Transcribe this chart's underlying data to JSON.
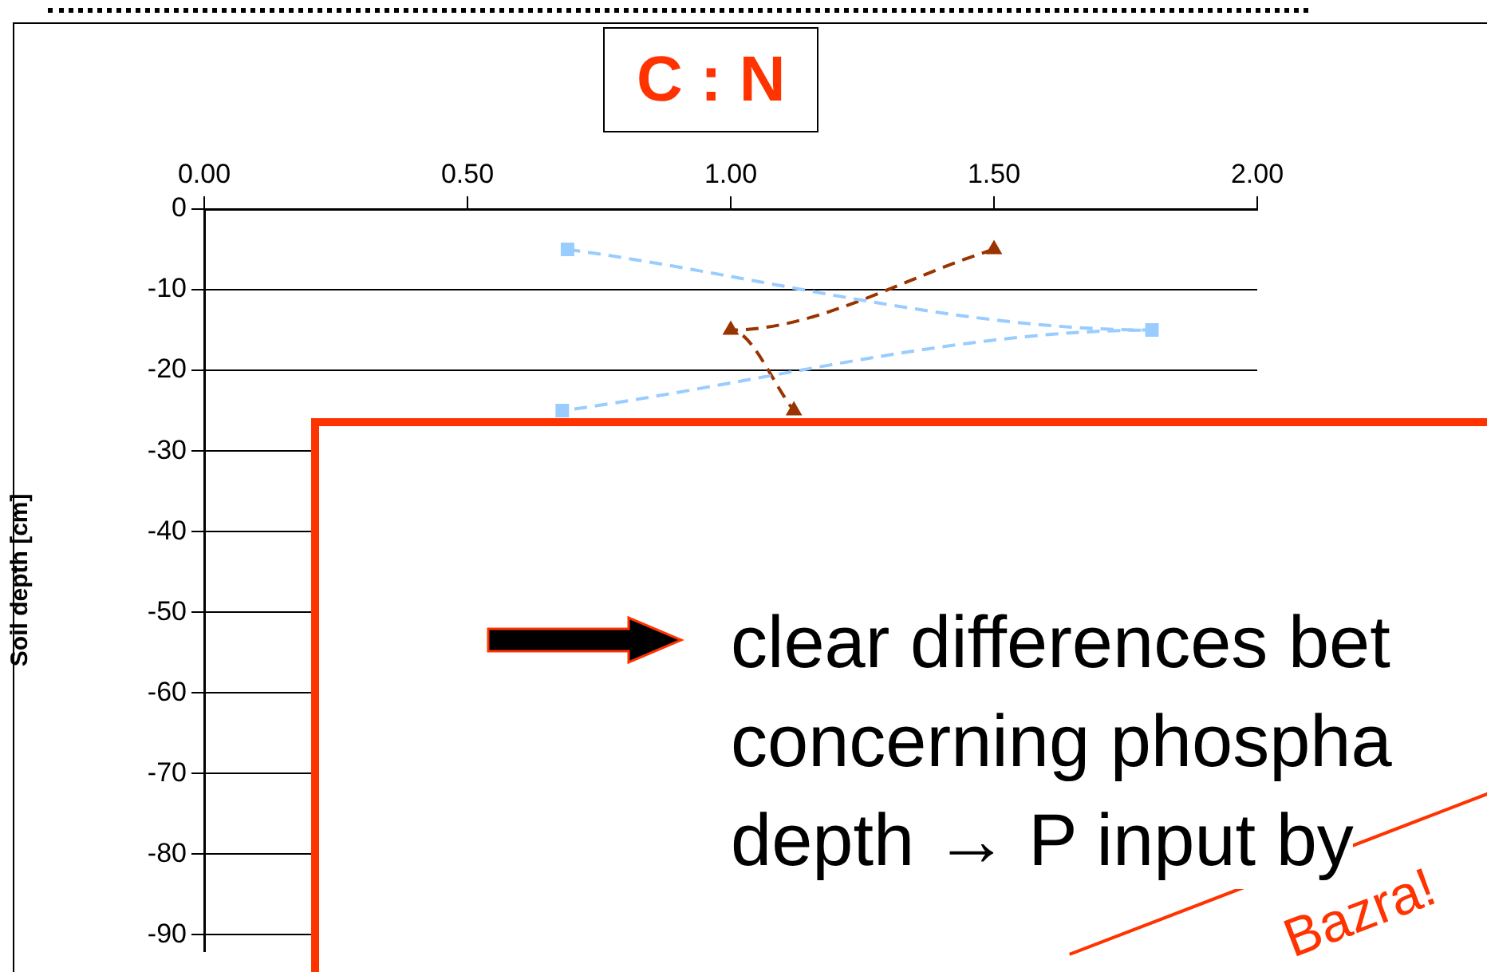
{
  "chart_data": {
    "type": "line",
    "title": "C : N",
    "ylabel": "Soil depth [cm]",
    "xlim": [
      0,
      2
    ],
    "xticks": [
      {
        "value": 0,
        "label": "0.00"
      },
      {
        "value": 0.5,
        "label": "0.50"
      },
      {
        "value": 1,
        "label": "1.00"
      },
      {
        "value": 1.5,
        "label": "1.50"
      },
      {
        "value": 2,
        "label": "2.00"
      }
    ],
    "ylim": [
      -92,
      0
    ],
    "yticks": [
      0,
      -10,
      -20,
      -30,
      -40,
      -50,
      -60,
      -70,
      -80,
      -90
    ],
    "grid": "y",
    "legend": false,
    "line_style": "dashed",
    "series": [
      {
        "color": "#99ccff",
        "marker": "square",
        "x": [
          0.69,
          1.8,
          0.68
        ],
        "values": [
          -5,
          -15,
          -25
        ]
      },
      {
        "color": "#993300",
        "marker": "triangle",
        "x": [
          1.5,
          1.0,
          1.12
        ],
        "values": [
          -5,
          -15,
          -25
        ]
      }
    ],
    "annotations": [
      "clear differences bet",
      "concerning phospha",
      "depth → P input by",
      "Bazra!"
    ]
  }
}
